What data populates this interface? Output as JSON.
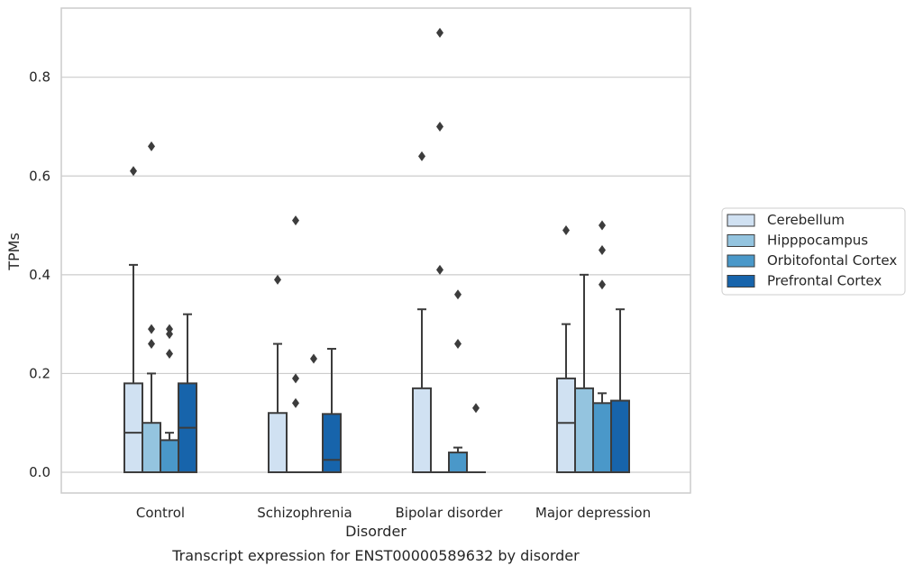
{
  "figure": {
    "caption": "Transcript expression for ENST00000589632 by disorder"
  },
  "chart_data": {
    "type": "box",
    "xlabel": "Disorder",
    "ylabel": "TPMs",
    "ylim": [
      -0.042,
      0.94
    ],
    "yticks": [
      0.0,
      0.2,
      0.4,
      0.6,
      0.8
    ],
    "ytick_labels": [
      "0.0",
      "0.2",
      "0.4",
      "0.6",
      "0.8"
    ],
    "grid": "horizontal",
    "legend_position": "right",
    "categories": [
      "Control",
      "Schizophrenia",
      "Bipolar disorder",
      "Major depression"
    ],
    "series": [
      {
        "name": "Cerebellum",
        "color": "#d0e1f2",
        "boxes": [
          {
            "q1": 0.0,
            "median": 0.08,
            "q3": 0.18,
            "whisker_low": 0.0,
            "whisker_high": 0.42,
            "outliers": [
              0.61
            ]
          },
          {
            "q1": 0.0,
            "median": 0.0,
            "q3": 0.12,
            "whisker_low": 0.0,
            "whisker_high": 0.26,
            "outliers": [
              0.39
            ]
          },
          {
            "q1": 0.0,
            "median": 0.0,
            "q3": 0.17,
            "whisker_low": 0.0,
            "whisker_high": 0.33,
            "outliers": [
              0.64
            ]
          },
          {
            "q1": 0.0,
            "median": 0.1,
            "q3": 0.19,
            "whisker_low": 0.0,
            "whisker_high": 0.3,
            "outliers": [
              0.49
            ]
          }
        ]
      },
      {
        "name": "Hipppocampus",
        "color": "#94c4df",
        "boxes": [
          {
            "q1": 0.0,
            "median": 0.0,
            "q3": 0.1,
            "whisker_low": 0.0,
            "whisker_high": 0.2,
            "outliers": [
              0.26,
              0.29,
              0.66
            ]
          },
          {
            "q1": 0.0,
            "median": 0.0,
            "q3": 0.0,
            "whisker_low": 0.0,
            "whisker_high": 0.0,
            "outliers": [
              0.14,
              0.19,
              0.51
            ]
          },
          {
            "q1": 0.0,
            "median": 0.0,
            "q3": 0.0,
            "whisker_low": 0.0,
            "whisker_high": 0.0,
            "outliers": [
              0.41,
              0.7,
              0.89
            ]
          },
          {
            "q1": 0.0,
            "median": 0.0,
            "q3": 0.17,
            "whisker_low": 0.0,
            "whisker_high": 0.4,
            "outliers": []
          }
        ]
      },
      {
        "name": "Orbitofontal Cortex",
        "color": "#4a98c9",
        "boxes": [
          {
            "q1": 0.0,
            "median": 0.0,
            "q3": 0.065,
            "whisker_low": 0.0,
            "whisker_high": 0.08,
            "outliers": [
              0.24,
              0.28,
              0.29
            ]
          },
          {
            "q1": 0.0,
            "median": 0.0,
            "q3": 0.0,
            "whisker_low": 0.0,
            "whisker_high": 0.0,
            "outliers": [
              0.23
            ]
          },
          {
            "q1": 0.0,
            "median": 0.0,
            "q3": 0.04,
            "whisker_low": 0.0,
            "whisker_high": 0.05,
            "outliers": [
              0.26,
              0.36
            ]
          },
          {
            "q1": 0.0,
            "median": 0.0,
            "q3": 0.14,
            "whisker_low": 0.0,
            "whisker_high": 0.16,
            "outliers": [
              0.38,
              0.45,
              0.5
            ]
          }
        ]
      },
      {
        "name": "Prefrontal Cortex",
        "color": "#1764ab",
        "boxes": [
          {
            "q1": 0.0,
            "median": 0.09,
            "q3": 0.18,
            "whisker_low": 0.0,
            "whisker_high": 0.32,
            "outliers": []
          },
          {
            "q1": 0.0,
            "median": 0.025,
            "q3": 0.118,
            "whisker_low": 0.0,
            "whisker_high": 0.25,
            "outliers": []
          },
          {
            "q1": 0.0,
            "median": 0.0,
            "q3": 0.0,
            "whisker_low": 0.0,
            "whisker_high": 0.0,
            "outliers": [
              0.13
            ]
          },
          {
            "q1": 0.0,
            "median": 0.0,
            "q3": 0.145,
            "whisker_low": 0.0,
            "whisker_high": 0.33,
            "outliers": []
          }
        ]
      }
    ]
  }
}
